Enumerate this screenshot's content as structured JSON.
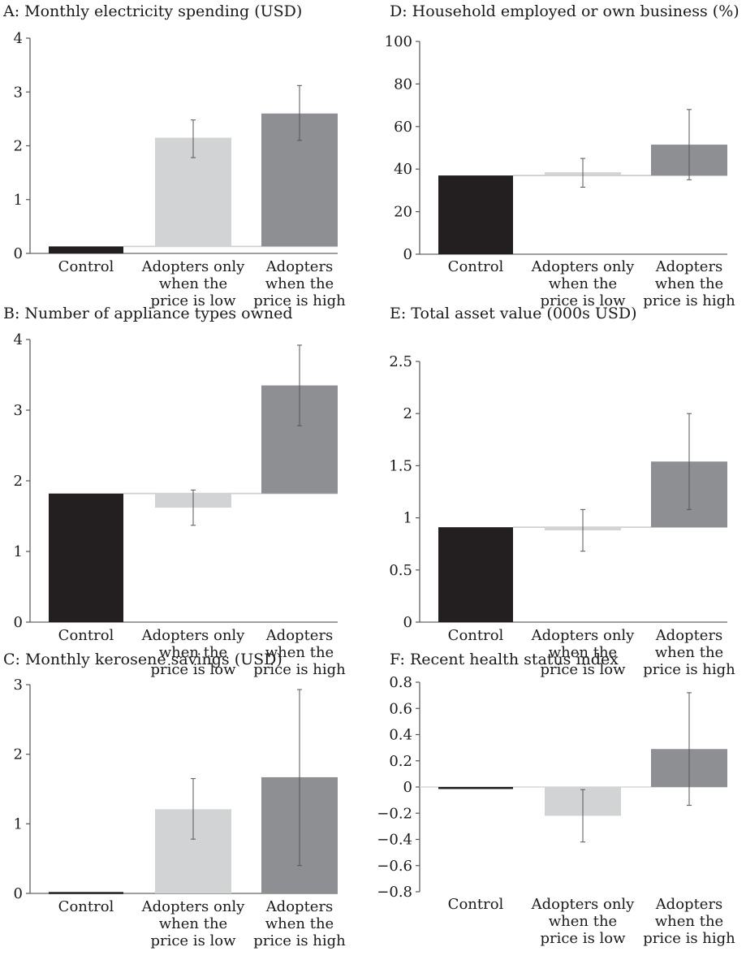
{
  "chart_data": [
    {
      "id": "A",
      "type": "bar",
      "title": "A: Monthly electricity spending (USD)",
      "categories": [
        [
          "Control"
        ],
        [
          "Adopters only",
          "when the",
          "price is low"
        ],
        [
          "Adopters",
          "when the",
          "price is high"
        ]
      ],
      "values": [
        0.13,
        2.15,
        2.6
      ],
      "error_low": [
        null,
        1.78,
        2.1
      ],
      "error_high": [
        null,
        2.48,
        3.12
      ],
      "bar_base": [
        0,
        0.13,
        0.13
      ],
      "ylim": [
        0,
        4
      ],
      "yticks": [
        0,
        1,
        2,
        3,
        4
      ],
      "ytick_labels": [
        "0",
        "1",
        "2",
        "3",
        "4"
      ],
      "bar_colors": [
        "#231f20",
        "#d1d3d4",
        "#8e8f93"
      ]
    },
    {
      "id": "B",
      "type": "bar",
      "title": "B: Number of appliance types owned",
      "categories": [
        [
          "Control"
        ],
        [
          "Adopters only",
          "when the",
          "price is low"
        ],
        [
          "Adopters",
          "when the",
          "price is high"
        ]
      ],
      "values": [
        1.82,
        1.62,
        3.35
      ],
      "error_low": [
        null,
        1.37,
        2.78
      ],
      "error_high": [
        null,
        1.87,
        3.92
      ],
      "bar_base": [
        0,
        1.82,
        1.82
      ],
      "ylim": [
        0,
        4
      ],
      "yticks": [
        0,
        1,
        2,
        3,
        4
      ],
      "ytick_labels": [
        "0",
        "1",
        "2",
        "3",
        "4"
      ],
      "bar_colors": [
        "#231f20",
        "#d1d3d4",
        "#8e8f93"
      ]
    },
    {
      "id": "C",
      "type": "bar",
      "title": "C: Monthly kerosene savings (USD)",
      "categories": [
        [
          "Control"
        ],
        [
          "Adopters only",
          "when the",
          "price is low"
        ],
        [
          "Adopters",
          "when the",
          "price is high"
        ]
      ],
      "values": [
        0.02,
        1.21,
        1.67
      ],
      "error_low": [
        null,
        0.78,
        0.4
      ],
      "error_high": [
        null,
        1.65,
        2.93
      ],
      "bar_base": [
        0,
        0,
        0
      ],
      "ylim": [
        0,
        3
      ],
      "yticks": [
        0,
        1,
        2,
        3
      ],
      "ytick_labels": [
        "0",
        "1",
        "2",
        "3"
      ],
      "bar_colors": [
        "#231f20",
        "#d1d3d4",
        "#8e8f93"
      ]
    },
    {
      "id": "D",
      "type": "bar",
      "title": "D: Household employed or own business (%)",
      "categories": [
        [
          "Control"
        ],
        [
          "Adopters only",
          "when the",
          "price is low"
        ],
        [
          "Adopters",
          "when the",
          "price is high"
        ]
      ],
      "values": [
        37,
        38.5,
        51.5
      ],
      "error_low": [
        null,
        31.5,
        35
      ],
      "error_high": [
        null,
        45,
        68
      ],
      "bar_base": [
        0,
        37,
        37
      ],
      "ylim": [
        0,
        100
      ],
      "yticks": [
        0,
        20,
        40,
        60,
        80,
        100
      ],
      "ytick_labels": [
        "0",
        "20",
        "40",
        "60",
        "80",
        "100"
      ],
      "bar_colors": [
        "#231f20",
        "#d1d3d4",
        "#8e8f93"
      ]
    },
    {
      "id": "E",
      "type": "bar",
      "title": "E: Total asset value (000s USD)",
      "categories": [
        [
          "Control"
        ],
        [
          "Adopters only",
          "when the",
          "price is low"
        ],
        [
          "Adopters",
          "when the",
          "price is high"
        ]
      ],
      "values": [
        0.91,
        0.88,
        1.54
      ],
      "error_low": [
        null,
        0.68,
        1.08
      ],
      "error_high": [
        null,
        1.08,
        2.0
      ],
      "bar_base": [
        0,
        0.91,
        0.91
      ],
      "ylim": [
        0,
        2.5
      ],
      "yticks": [
        0,
        0.5,
        1,
        1.5,
        2,
        2.5
      ],
      "ytick_labels": [
        "0",
        "0.5",
        "1",
        "1.5",
        "2",
        "2.5"
      ],
      "bar_colors": [
        "#231f20",
        "#d1d3d4",
        "#8e8f93"
      ]
    },
    {
      "id": "F",
      "type": "bar",
      "title": "F: Recent health status index",
      "categories": [
        [
          "Control"
        ],
        [
          "Adopters only",
          "when the",
          "price is low"
        ],
        [
          "Adopters",
          "when the",
          "price is high"
        ]
      ],
      "values": [
        0.0,
        -0.22,
        0.29
      ],
      "error_low": [
        null,
        -0.42,
        -0.14
      ],
      "error_high": [
        null,
        -0.02,
        0.72
      ],
      "bar_base": [
        0,
        0,
        0
      ],
      "ylim": [
        -0.8,
        0.8
      ],
      "yticks": [
        0.8,
        0.6,
        0.4,
        0.2,
        0,
        -0.2,
        -0.4,
        -0.6,
        -0.8
      ],
      "ytick_labels": [
        "0.8",
        "0.6",
        "0.4",
        "0.2",
        "0",
        "−0.2",
        "−0.4",
        "−0.6",
        "−0.8"
      ],
      "bar_colors": [
        "#231f20",
        "#d1d3d4",
        "#8e8f93"
      ]
    }
  ]
}
